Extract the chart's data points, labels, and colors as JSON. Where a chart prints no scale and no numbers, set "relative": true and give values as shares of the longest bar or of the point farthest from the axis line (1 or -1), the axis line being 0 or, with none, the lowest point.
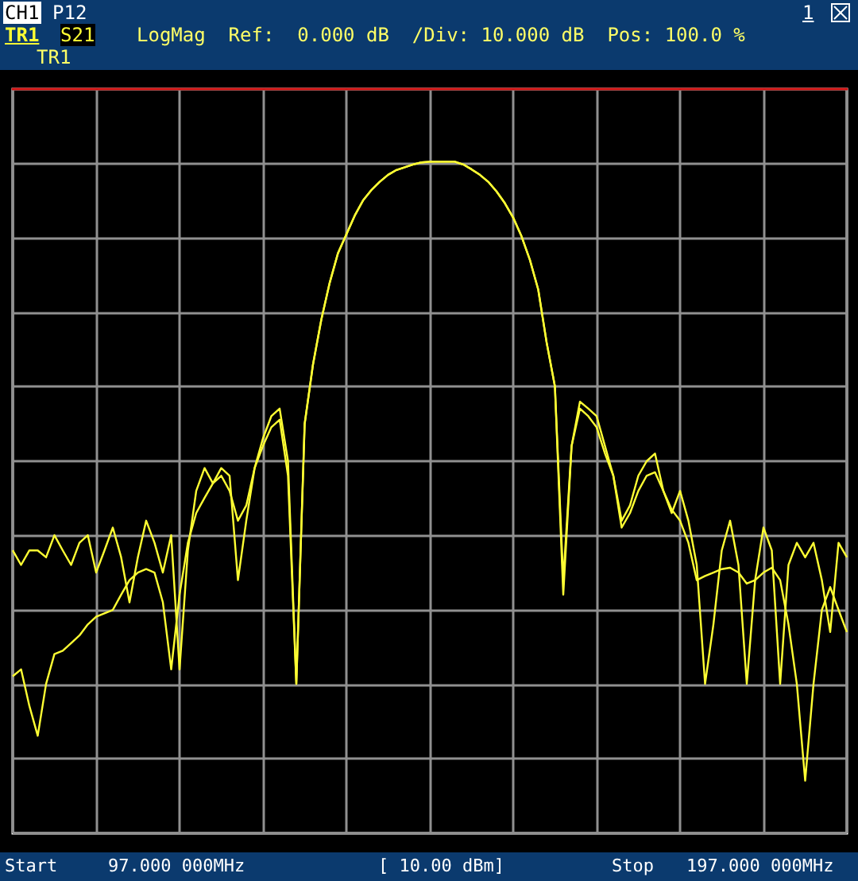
{
  "chart_data": {
    "type": "line",
    "relative": true,
    "annotations": [
      "CH1",
      "P12",
      "1",
      "TR1",
      "S21",
      "LogMag  Ref:  0.000 dB  /Div: 10.000 dB  Pos: 100.0 %",
      "TR1",
      "Start",
      "97.000 000MHz",
      "[ 10.00 dBm]",
      "Stop",
      "197.000 000MHz"
    ],
    "categories": [
      null,
      null,
      null,
      null,
      null,
      null,
      null,
      null,
      null,
      null,
      null,
      null,
      null,
      null,
      null,
      null,
      null,
      null,
      null,
      null,
      null,
      null,
      null,
      null,
      null,
      null,
      null,
      null,
      null,
      null,
      null,
      null,
      null,
      null,
      null,
      null,
      null,
      null,
      null,
      null,
      null,
      null,
      null,
      null,
      null,
      null,
      null,
      null,
      null,
      null,
      null,
      null,
      null,
      null,
      null,
      null,
      null,
      null,
      null,
      null,
      null,
      null,
      null,
      null,
      null,
      null,
      null,
      null,
      null,
      null,
      null,
      null,
      null,
      null,
      null,
      null,
      null,
      null,
      null,
      null,
      null,
      null,
      null,
      null,
      null,
      null,
      null,
      null,
      null,
      null,
      null,
      null,
      null,
      null,
      null,
      null,
      null,
      null,
      null,
      null,
      null
    ],
    "tick_labels": false,
    "grid": true,
    "line_style": "solid",
    "series": [
      {
        "color": "#ffff33",
        "values": [
          -0.667,
          -0.688,
          -0.667,
          -0.667,
          -0.677,
          -0.645,
          -0.667,
          -0.688,
          -0.656,
          -0.645,
          -0.699,
          -0.667,
          -0.634,
          -0.677,
          -0.742,
          -0.677,
          -0.624,
          -0.656,
          -0.699,
          -0.645,
          -0.839,
          -0.667,
          -0.581,
          -0.548,
          -0.57,
          -0.548,
          -0.559,
          -0.71,
          -0.624,
          -0.548,
          -0.505,
          -0.473,
          -0.462,
          -0.538,
          -0.86,
          -0.484,
          -0.398,
          -0.333,
          -0.28,
          -0.237,
          -0.21,
          -0.183,
          -0.161,
          -0.146,
          -0.134,
          -0.124,
          -0.117,
          -0.113,
          -0.109,
          -0.106,
          -0.105,
          -0.105,
          -0.105,
          -0.105,
          -0.109,
          -0.116,
          -0.124,
          -0.134,
          -0.148,
          -0.165,
          -0.186,
          -0.213,
          -0.247,
          -0.29,
          -0.366,
          -0.43,
          -0.731,
          -0.516,
          -0.452,
          -0.462,
          -0.473,
          -0.516,
          -0.559,
          -0.624,
          -0.602,
          -0.559,
          -0.538,
          -0.527,
          -0.581,
          -0.613,
          -0.581,
          -0.624,
          -0.688,
          -0.86,
          -0.774,
          -0.667,
          -0.624,
          -0.688,
          -0.86,
          -0.71,
          -0.634,
          -0.667,
          -0.86,
          -0.688,
          -0.656,
          -0.677,
          -0.656,
          -0.71,
          -0.785,
          -0.656,
          -0.677
        ]
      },
      {
        "color": "#ffff33",
        "values": [
          -0.849,
          -0.839,
          -0.892,
          -0.935,
          -0.86,
          -0.817,
          -0.812,
          -0.801,
          -0.79,
          -0.774,
          -0.763,
          -0.758,
          -0.753,
          -0.731,
          -0.71,
          -0.699,
          -0.694,
          -0.699,
          -0.742,
          -0.839,
          -0.731,
          -0.656,
          -0.613,
          -0.591,
          -0.57,
          -0.559,
          -0.581,
          -0.624,
          -0.602,
          -0.548,
          -0.516,
          -0.489,
          -0.478,
          -0.559,
          -0.86,
          -0.484,
          -0.398,
          -0.333,
          -0.28,
          -0.237,
          -0.21,
          -0.183,
          -0.161,
          -0.146,
          -0.134,
          -0.124,
          -0.117,
          -0.113,
          -0.109,
          -0.106,
          -0.105,
          -0.105,
          -0.105,
          -0.105,
          -0.109,
          -0.116,
          -0.124,
          -0.134,
          -0.148,
          -0.165,
          -0.186,
          -0.213,
          -0.247,
          -0.29,
          -0.366,
          -0.43,
          -0.71,
          -0.516,
          -0.462,
          -0.473,
          -0.489,
          -0.527,
          -0.559,
          -0.634,
          -0.613,
          -0.581,
          -0.559,
          -0.554,
          -0.581,
          -0.608,
          -0.624,
          -0.656,
          -0.71,
          -0.704,
          -0.699,
          -0.694,
          -0.692,
          -0.699,
          -0.715,
          -0.71,
          -0.699,
          -0.692,
          -0.71,
          -0.774,
          -0.86,
          -1,
          -0.86,
          -0.753,
          -0.72,
          -0.753,
          -0.785
        ]
      }
    ]
  }
}
